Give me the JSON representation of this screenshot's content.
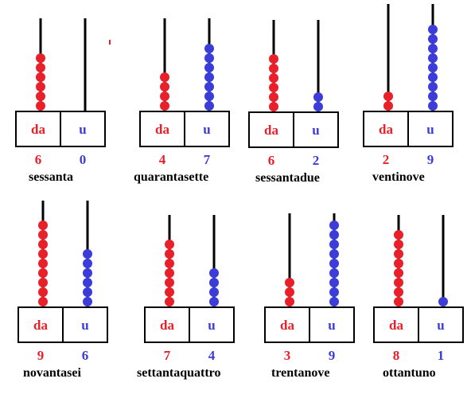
{
  "colors": {
    "tens": "#e8202a",
    "units": "#3c3cd8",
    "frame": "#000000",
    "word": "#000000"
  },
  "column_labels": {
    "tens": "da",
    "units": "u"
  },
  "abaci": [
    {
      "tens": 6,
      "units": 0,
      "tens_text": "6",
      "units_text": "0",
      "word": "sessanta"
    },
    {
      "tens": 4,
      "units": 7,
      "tens_text": "4",
      "units_text": "7",
      "word": "quarantasette"
    },
    {
      "tens": 6,
      "units": 2,
      "tens_text": "6",
      "units_text": "2",
      "word": "sessantadue"
    },
    {
      "tens": 2,
      "units": 9,
      "tens_text": "2",
      "units_text": "9",
      "word": "ventinove"
    },
    {
      "tens": 9,
      "units": 6,
      "tens_text": "9",
      "units_text": "6",
      "word": "novantasei"
    },
    {
      "tens": 7,
      "units": 4,
      "tens_text": "7",
      "units_text": "4",
      "word": "settantaquattro"
    },
    {
      "tens": 3,
      "units": 9,
      "tens_text": "3",
      "units_text": "9",
      "word": "trentanove"
    },
    {
      "tens": 8,
      "units": 1,
      "tens_text": "8",
      "units_text": "1",
      "word": "ottantuno"
    }
  ]
}
